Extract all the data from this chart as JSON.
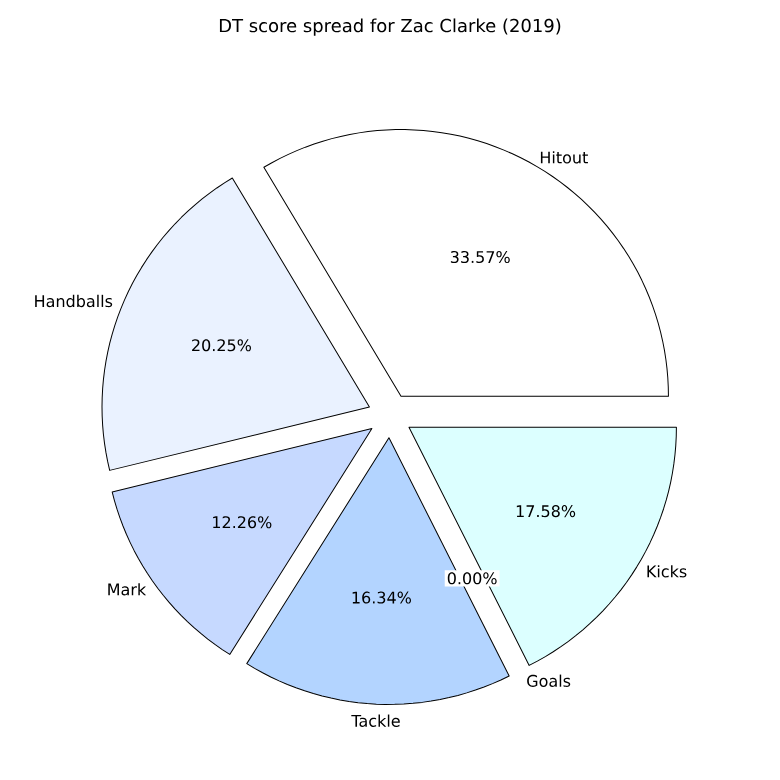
{
  "chart_data": {
    "type": "pie",
    "title": "DT score spread for Zac Clarke (2019)",
    "categories": [
      "Hitout",
      "Handballs",
      "Mark",
      "Tackle",
      "Goals",
      "Kicks"
    ],
    "values": [
      33.57,
      20.25,
      12.26,
      16.34,
      0.0,
      17.58
    ],
    "value_labels": [
      "33.57%",
      "20.25%",
      "12.26%",
      "16.34%",
      "0.00%",
      "17.58%"
    ],
    "colors": [
      "#ffffff",
      "#eaf2ff",
      "#c6d9ff",
      "#b3d4ff",
      "#cfe0ff",
      "#dcffff"
    ]
  }
}
